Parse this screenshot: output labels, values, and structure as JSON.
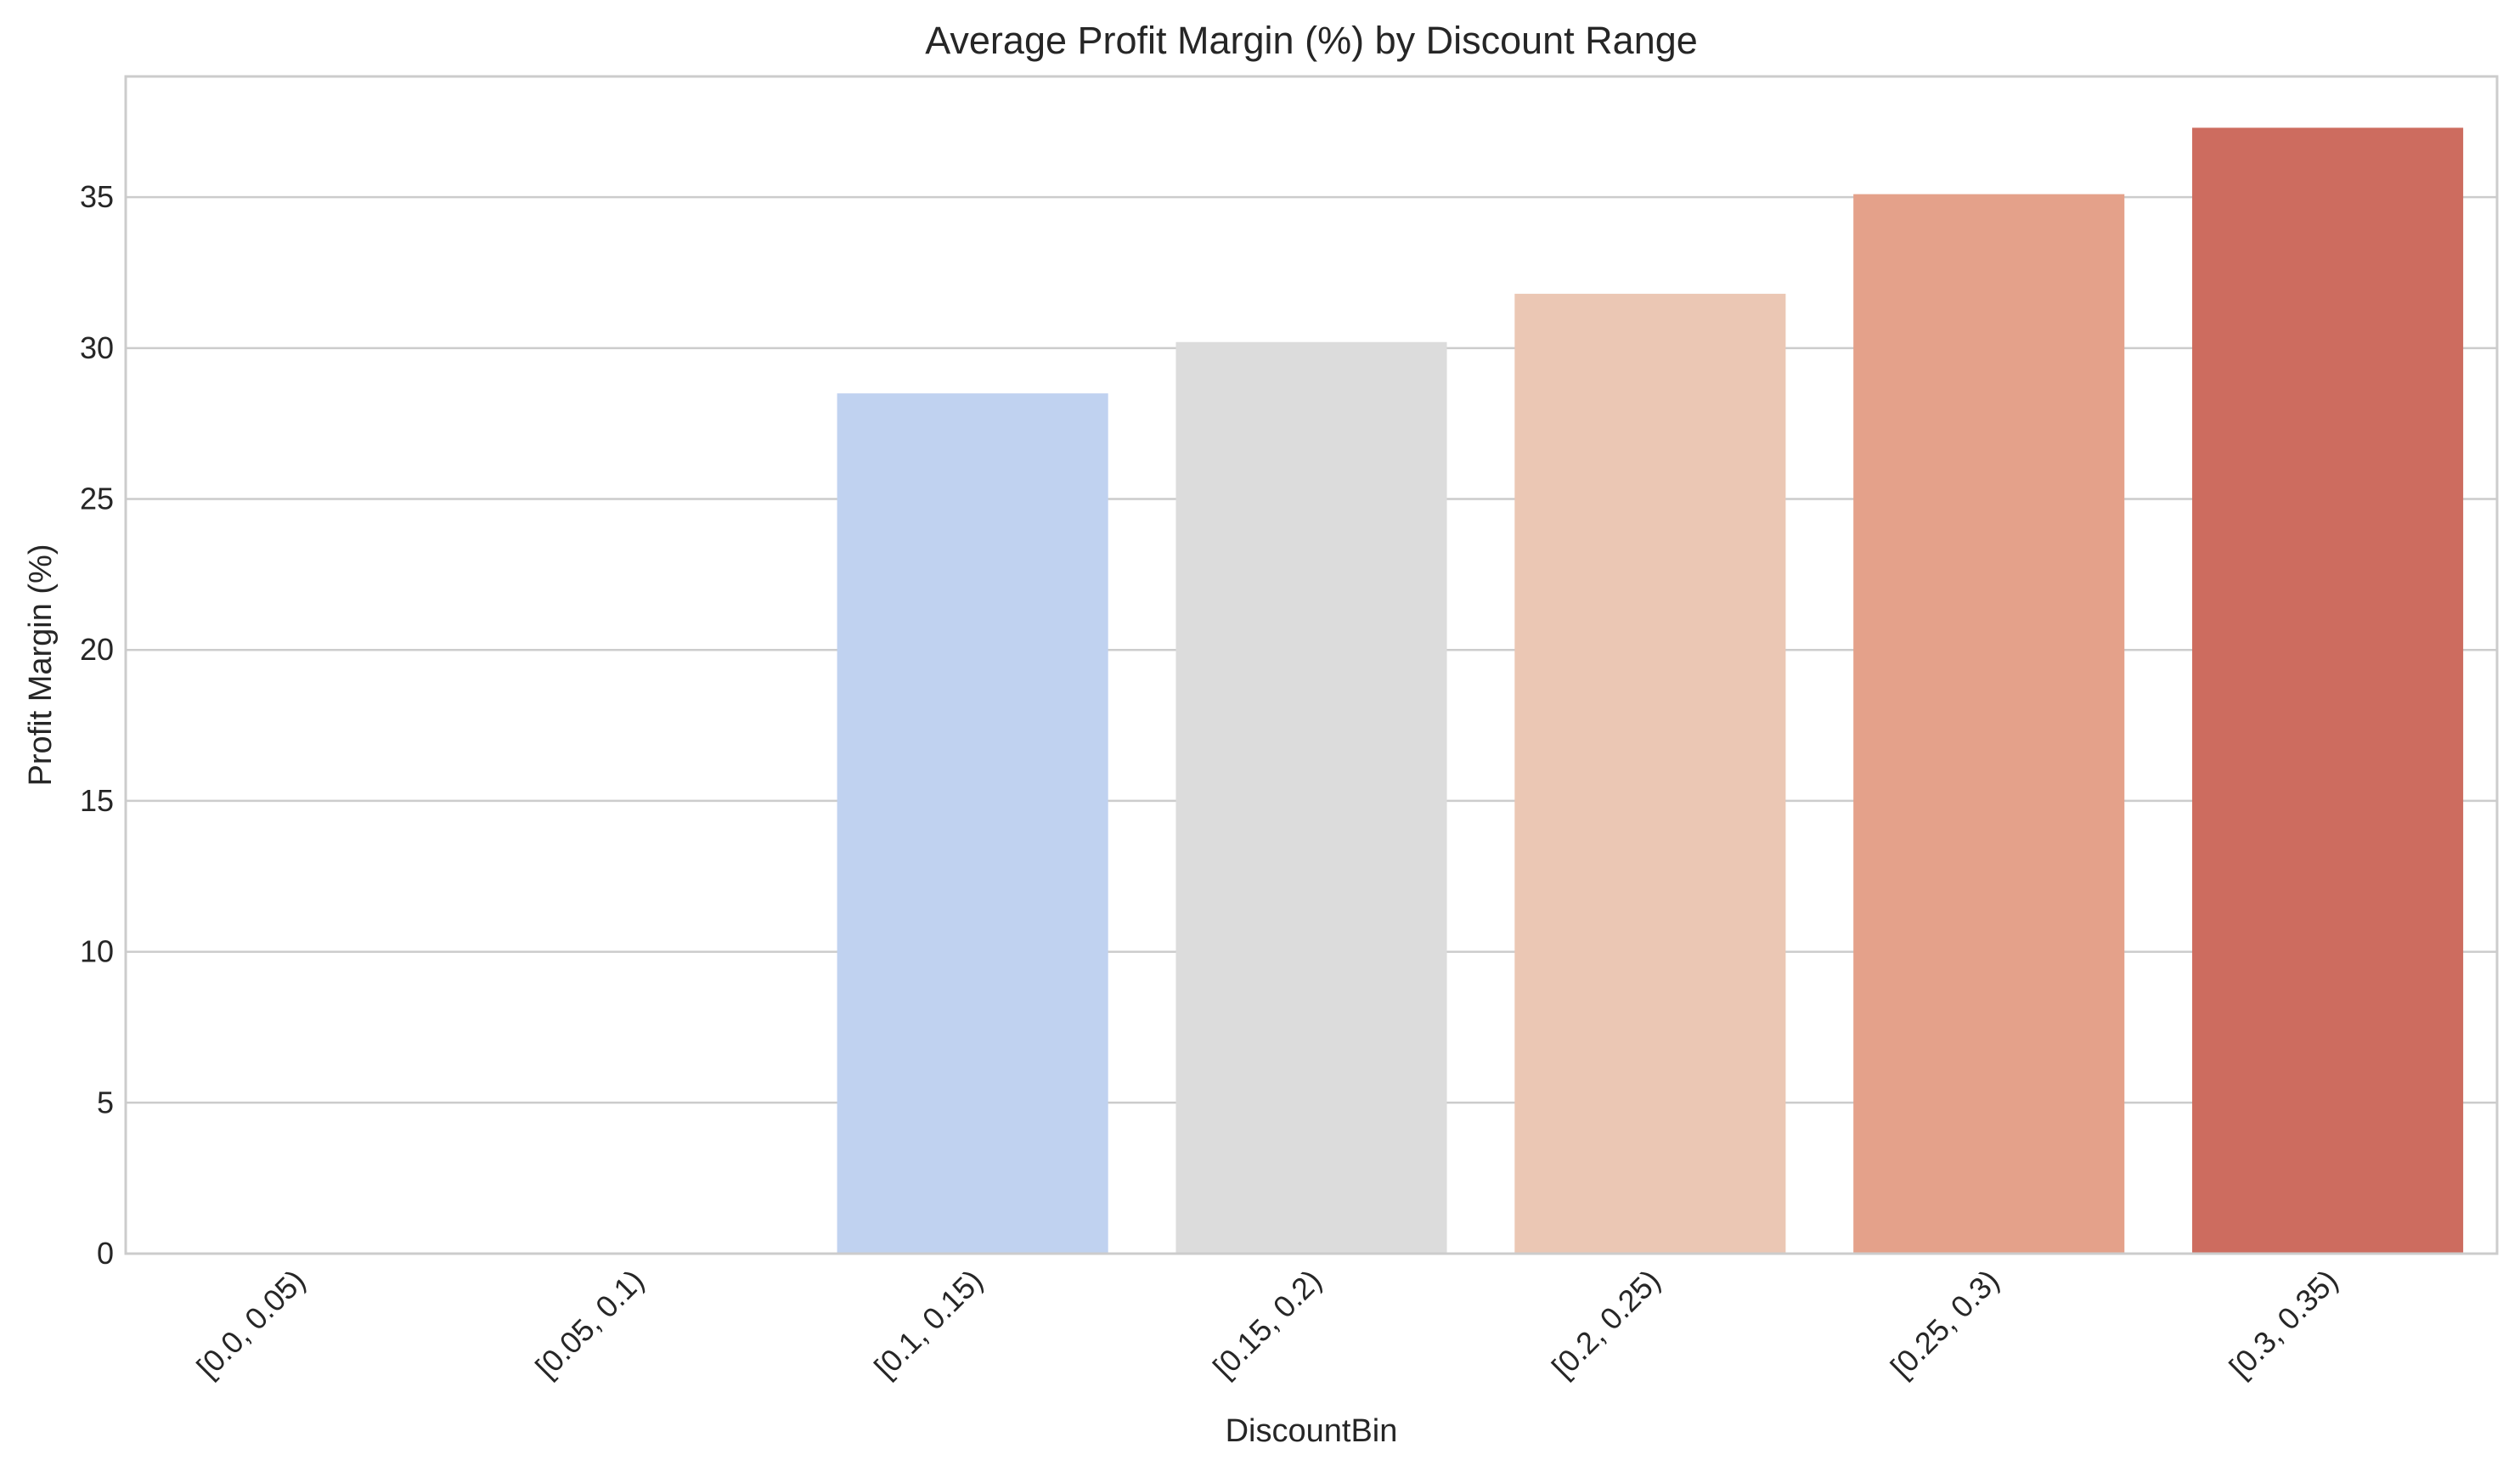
{
  "chart_data": {
    "type": "bar",
    "title": "Average Profit Margin (%) by Discount Range",
    "xlabel": "DiscountBin",
    "ylabel": "Profit Margin (%)",
    "categories": [
      "[0.0, 0.05)",
      "[0.05, 0.1)",
      "[0.1, 0.15)",
      "[0.15, 0.2)",
      "[0.2, 0.25)",
      "[0.25, 0.3)",
      "[0.3, 0.35)"
    ],
    "values": [
      0,
      0,
      28.5,
      30.2,
      31.8,
      35.1,
      37.3
    ],
    "colors": [
      "#a6c2ee",
      "#a6c2ee",
      "#c0d2f0",
      "#dcdcdc",
      "#ebc7b4",
      "#e4a18a",
      "#cd6c5f"
    ],
    "ylim": [
      0,
      39
    ],
    "yticks": [
      0,
      5,
      10,
      15,
      20,
      25,
      30,
      35
    ],
    "grid": "horizontal",
    "legend": "none"
  }
}
